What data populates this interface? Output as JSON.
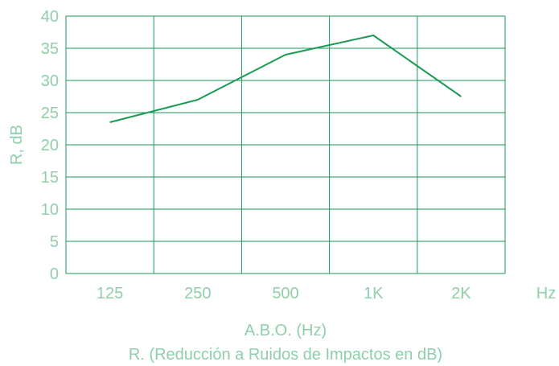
{
  "chart_data": {
    "type": "line",
    "categories": [
      "125",
      "250",
      "500",
      "1K",
      "2K"
    ],
    "x_unit": "Hz",
    "series": [
      {
        "values": [
          23.5,
          27,
          34,
          37,
          27.5
        ]
      }
    ],
    "ylabel": "R, dB",
    "xlabel": "A.B.O. (Hz)",
    "subtitle": "R. (Reducción a Ruidos de Impactos en dB)",
    "ylim": [
      0,
      40
    ],
    "yticks": [
      0,
      5,
      10,
      15,
      20,
      25,
      30,
      35,
      40
    ],
    "grid": true,
    "colors": {
      "line": "#1a9a54",
      "grid": "#1a9a54",
      "text": "#8fcfaa"
    }
  }
}
